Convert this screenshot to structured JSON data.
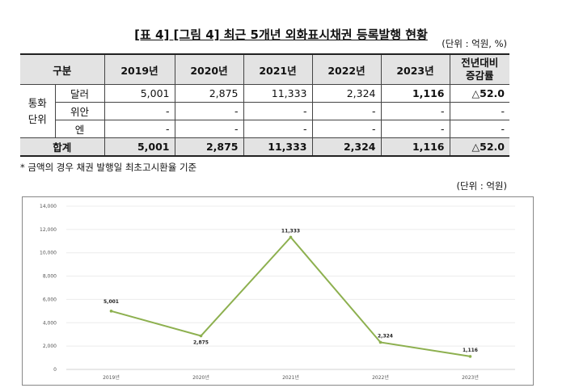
{
  "title": "[표 4] [그림 4] 최근 5개년 외화표시채권 등록발행 현황",
  "table_unit": "(단위 : 억원, %)",
  "table": {
    "header": [
      "구분",
      "2019년",
      "2020년",
      "2021년",
      "2022년",
      "2023년",
      "전년대비",
      "증감률"
    ],
    "group_label": [
      "통화",
      "단위"
    ],
    "rows": [
      {
        "label": "달러",
        "values": [
          "5,001",
          "2,875",
          "11,333",
          "2,324",
          "1,116",
          "△52.0"
        ]
      },
      {
        "label": "위안",
        "values": [
          "-",
          "-",
          "-",
          "-",
          "-",
          "-"
        ]
      },
      {
        "label": "엔",
        "values": [
          "-",
          "-",
          "-",
          "-",
          "-",
          "-"
        ]
      }
    ],
    "total": {
      "label": "합계",
      "values": [
        "5,001",
        "2,875",
        "11,333",
        "2,324",
        "1,116",
        "△52.0"
      ]
    }
  },
  "footnote": "* 금액의 경우 채권 발행일 최초고시환율 기준",
  "chart_unit": "(단위 : 억원)",
  "chart_data": {
    "type": "line",
    "categories": [
      "2019년",
      "2020년",
      "2021년",
      "2022년",
      "2023년"
    ],
    "values": [
      5001,
      2875,
      11333,
      2324,
      1116
    ],
    "data_labels": [
      "5,001",
      "2,875",
      "11,333",
      "2,324",
      "1,116"
    ],
    "ylim": [
      0,
      14000
    ],
    "yticks": [
      0,
      2000,
      4000,
      6000,
      8000,
      10000,
      12000,
      14000
    ],
    "ytick_labels": [
      "0",
      "2,000",
      "4,000",
      "6,000",
      "8,000",
      "10,000",
      "12,000",
      "14,000"
    ],
    "grid": true,
    "color": "#8db04f"
  }
}
